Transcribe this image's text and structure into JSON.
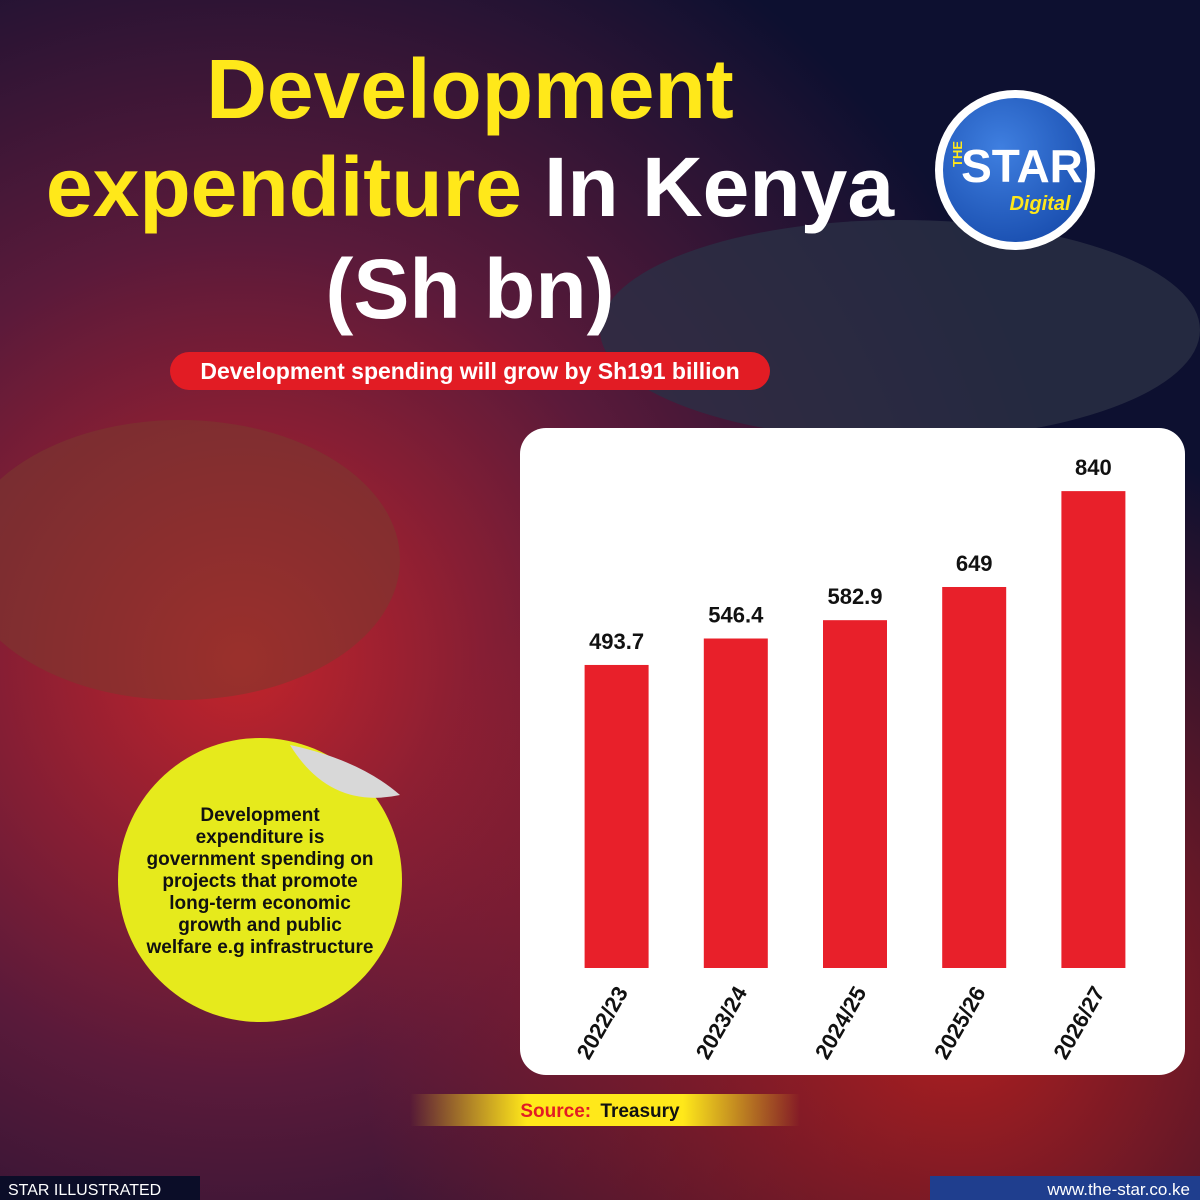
{
  "chart_data": {
    "type": "bar",
    "title": [
      {
        "text": "Development",
        "color": "#ffe81a"
      },
      {
        "text": "expenditure",
        "color": "#ffe81a"
      },
      {
        "text": "In Kenya",
        "color": "#ffffff"
      },
      {
        "text": "(Sh bn)",
        "color": "#ffffff"
      }
    ],
    "subtitle": "Development spending will grow by Sh191 billion",
    "note": "Development expenditure is government spending on projects that promote long-term economic growth and public welfare e.g infrastructure",
    "source_label": "Source:",
    "source": "Treasury",
    "categories": [
      "2022/23",
      "2023/24",
      "2024/25",
      "2025/26",
      "2026/27"
    ],
    "values": [
      493.7,
      546.4,
      582.9,
      649,
      840
    ],
    "color": "#e8202a",
    "ylim": [
      -110,
      900
    ],
    "logo": {
      "top": "THE",
      "main": "STAR",
      "bottom": "Digital"
    },
    "footer_left": "STAR ILLUSTRATED",
    "footer_right": "www.the-star.co.ke"
  }
}
